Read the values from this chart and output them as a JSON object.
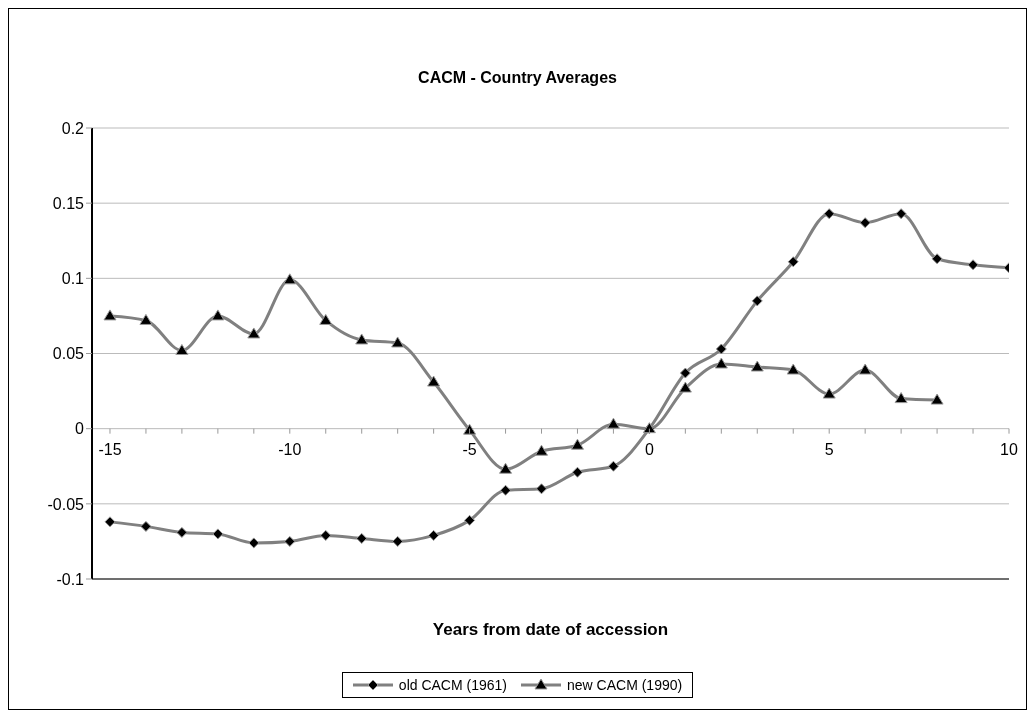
{
  "chart_data": {
    "type": "line",
    "title": "CACM - Country Averages",
    "xlabel": "Years from date of accession",
    "x": [
      -15,
      -14,
      -13,
      -12,
      -11,
      -10,
      -9,
      -8,
      -7,
      -6,
      -5,
      -4,
      -3,
      -2,
      -1,
      0,
      1,
      2,
      3,
      4,
      5,
      6,
      7,
      8,
      9,
      10
    ],
    "series": [
      {
        "name": "old CACM (1961)",
        "color": "#808080",
        "marker": "diamond",
        "values": [
          -0.062,
          -0.065,
          -0.069,
          -0.07,
          -0.076,
          -0.075,
          -0.071,
          -0.073,
          -0.075,
          -0.071,
          -0.061,
          -0.041,
          -0.04,
          -0.029,
          -0.025,
          0,
          0.037,
          0.053,
          0.085,
          0.111,
          0.143,
          0.137,
          0.143,
          0.113,
          0.109,
          0.107
        ]
      },
      {
        "name": "new CACM (1990)",
        "color": "#808080",
        "marker": "triangle",
        "values": [
          0.075,
          0.072,
          0.052,
          0.075,
          0.063,
          0.099,
          0.072,
          0.059,
          0.057,
          0.031,
          -0.001,
          -0.027,
          -0.015,
          -0.011,
          0.003,
          0,
          0.027,
          0.043,
          0.041,
          0.039,
          0.023,
          0.039,
          0.02,
          0.019,
          null,
          null
        ]
      }
    ],
    "xlim": [
      -15.5,
      10
    ],
    "xticks": [
      -15,
      {
        "value": -14,
        "label": null
      },
      {
        "value": -13,
        "label": null
      },
      {
        "value": -12,
        "label": null
      },
      {
        "value": -11,
        "label": null
      },
      -10,
      {
        "value": -9,
        "label": null
      },
      {
        "value": -8,
        "label": null
      },
      {
        "value": -7,
        "label": null
      },
      {
        "value": -6,
        "label": null
      },
      -5,
      {
        "value": -4,
        "label": null
      },
      {
        "value": -3,
        "label": null
      },
      {
        "value": -2,
        "label": null
      },
      {
        "value": -1,
        "label": null
      },
      0,
      {
        "value": 1,
        "label": null
      },
      {
        "value": 2,
        "label": null
      },
      {
        "value": 3,
        "label": null
      },
      {
        "value": 4,
        "label": null
      },
      5,
      {
        "value": 6,
        "label": null
      },
      {
        "value": 7,
        "label": null
      },
      {
        "value": 8,
        "label": null
      },
      {
        "value": 9,
        "label": null
      },
      10
    ],
    "ylim": [
      -0.1,
      0.2
    ],
    "yticks": [
      -0.1,
      -0.05,
      0,
      0.05,
      0.1,
      0.15,
      0.2
    ],
    "grid": "y",
    "legend": "bottom",
    "line_style": "solid"
  }
}
